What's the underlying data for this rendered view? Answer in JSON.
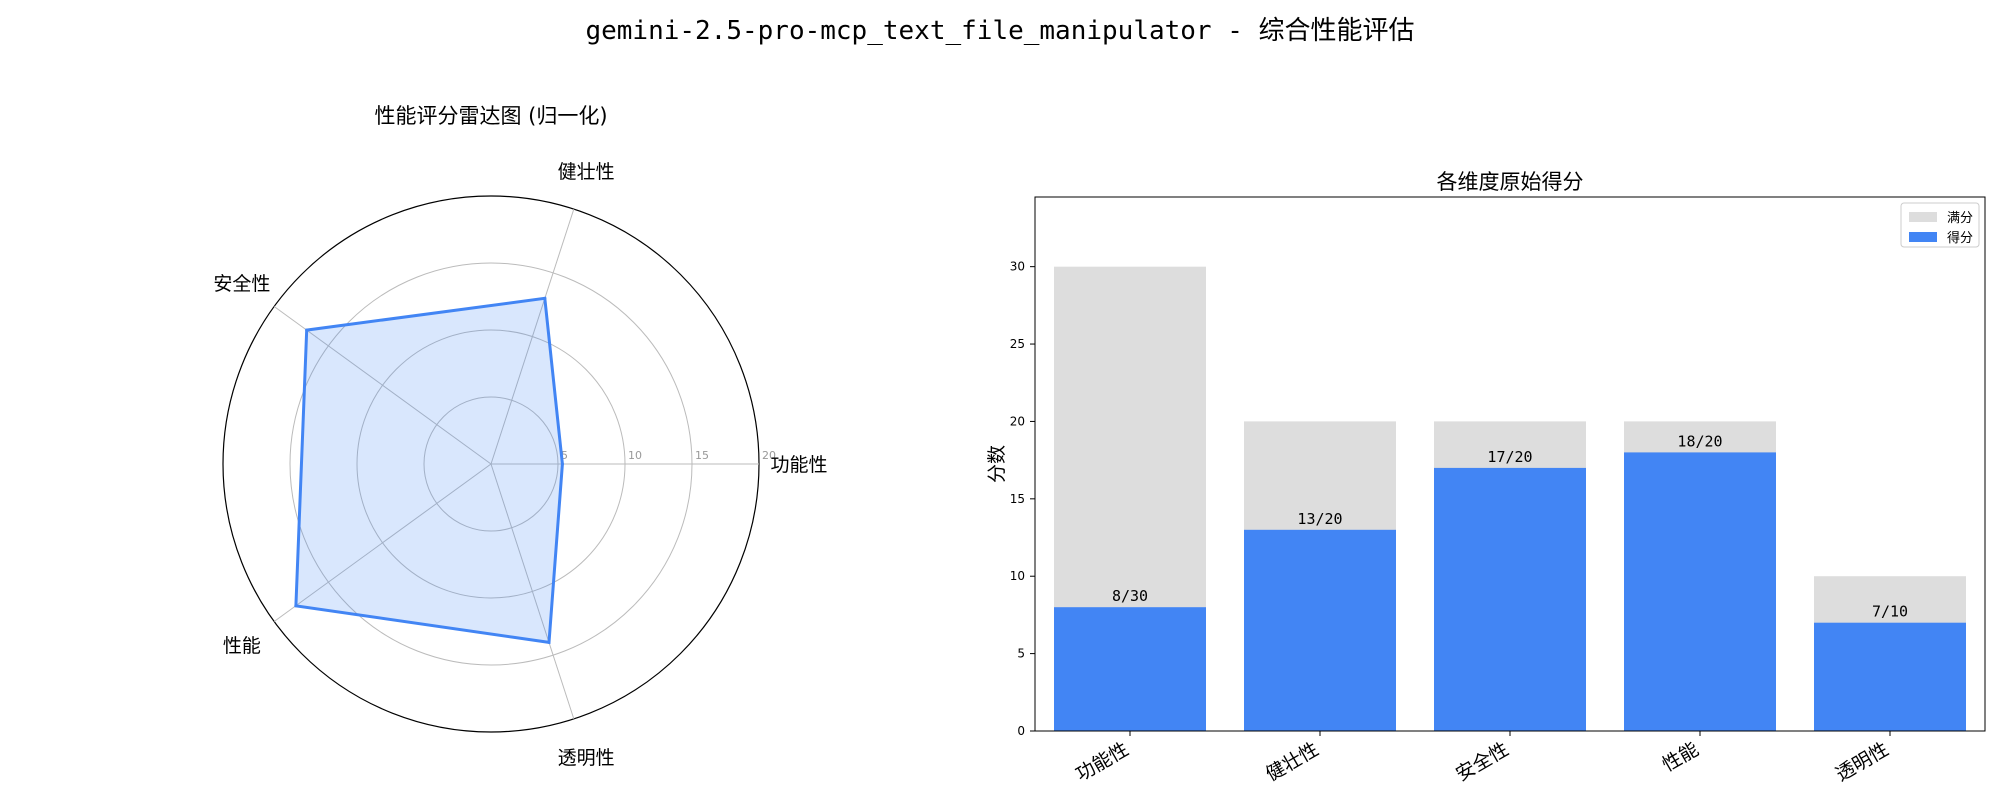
{
  "page_title": "gemini-2.5-pro-mcp_text_file_manipulator - 综合性能评估",
  "chart_data": [
    {
      "type": "radar",
      "title": "性能评分雷达图 (归一化)",
      "axes": [
        "功能性",
        "健壮性",
        "安全性",
        "性能",
        "透明性"
      ],
      "values": [
        5.33,
        13,
        17,
        18,
        14
      ],
      "r_ticks": [
        5,
        10,
        15,
        20
      ],
      "r_max": 20,
      "grid": true,
      "colors": {
        "line": "#4285f4",
        "fill": "#4285f4",
        "grid": "#bbbbbb"
      }
    },
    {
      "type": "bar",
      "title": "各维度原始得分",
      "categories": [
        "功能性",
        "健壮性",
        "安全性",
        "性能",
        "透明性"
      ],
      "series": [
        {
          "name": "满分",
          "values": [
            30,
            20,
            20,
            20,
            10
          ],
          "color": "#dddddd"
        },
        {
          "name": "得分",
          "values": [
            8,
            13,
            17,
            18,
            7
          ],
          "color": "#4285f4"
        }
      ],
      "data_labels": [
        "8/30",
        "13/20",
        "17/20",
        "18/20",
        "7/10"
      ],
      "ylabel": "分数",
      "xlabel": "",
      "ylim": [
        0,
        34.5
      ],
      "yticks": [
        0,
        5,
        10,
        15,
        20,
        25,
        30
      ],
      "legend": "top-right",
      "grid": false
    }
  ]
}
